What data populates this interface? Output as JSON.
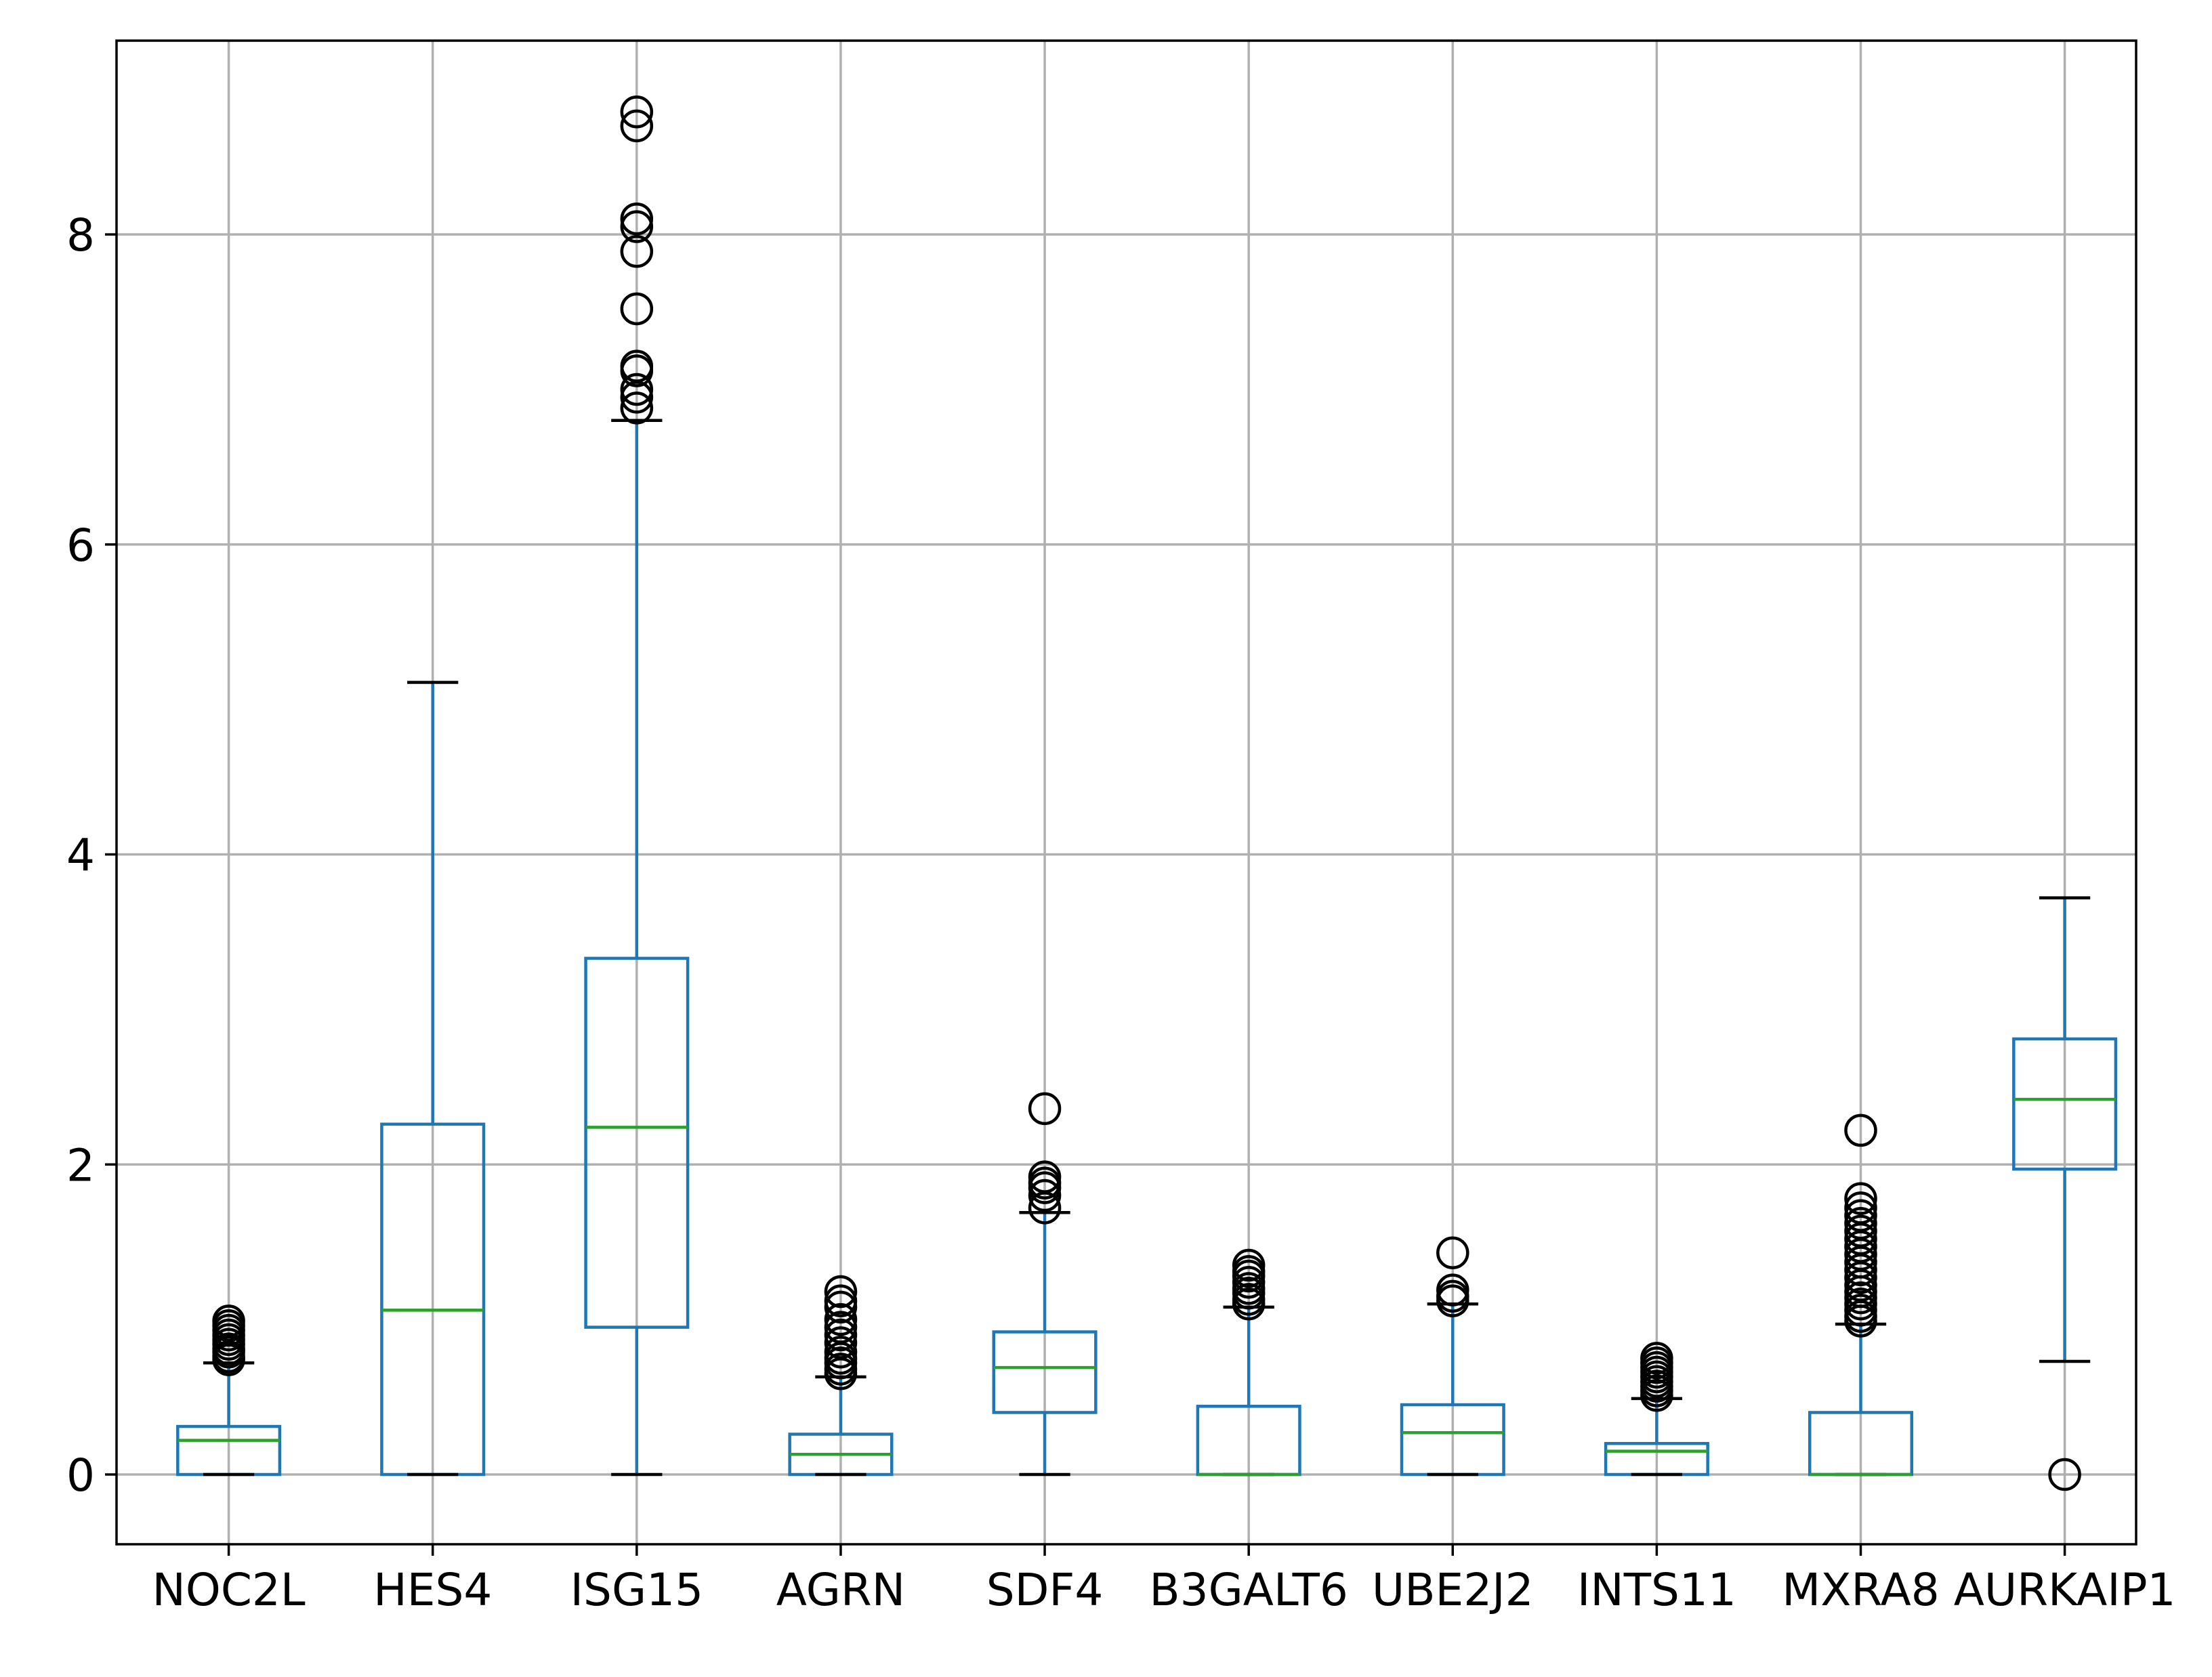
{
  "chart_data": {
    "type": "box",
    "title": "",
    "xlabel": "",
    "ylabel": "",
    "ylim": [
      -0.45,
      9.25
    ],
    "yticks": [
      0,
      2,
      4,
      6,
      8
    ],
    "grid": true,
    "categories": [
      "NOC2L",
      "HES4",
      "ISG15",
      "AGRN",
      "SDF4",
      "B3GALT6",
      "UBE2J2",
      "INTS11",
      "MXRA8",
      "AURKAIP1"
    ],
    "boxes": [
      {
        "category": "NOC2L",
        "whisker_low": 0,
        "q1": 0,
        "median": 0.22,
        "q3": 0.31,
        "whisker_high": 0.72,
        "outliers": [
          0.74,
          0.76,
          0.79,
          0.81,
          0.84,
          0.87,
          0.9,
          0.93,
          0.96,
          0.99
        ]
      },
      {
        "category": "HES4",
        "whisker_low": 0,
        "q1": 0,
        "median": 1.06,
        "q3": 2.26,
        "whisker_high": 5.11,
        "outliers": []
      },
      {
        "category": "ISG15",
        "whisker_low": 0,
        "q1": 0.95,
        "median": 2.24,
        "q3": 3.33,
        "whisker_high": 6.8,
        "outliers": [
          6.88,
          6.95,
          7.0,
          7.12,
          7.15,
          7.52,
          7.89,
          8.05,
          8.1,
          8.7,
          8.79
        ]
      },
      {
        "category": "AGRN",
        "whisker_low": 0,
        "q1": 0,
        "median": 0.13,
        "q3": 0.26,
        "whisker_high": 0.63,
        "outliers": [
          0.65,
          0.68,
          0.72,
          0.75,
          0.79,
          0.85,
          0.9,
          0.95,
          1.0,
          1.08,
          1.12,
          1.18
        ]
      },
      {
        "category": "SDF4",
        "whisker_low": 0,
        "q1": 0.4,
        "median": 0.69,
        "q3": 0.92,
        "whisker_high": 1.69,
        "outliers": [
          1.72,
          1.8,
          1.85,
          1.88,
          1.92,
          2.36
        ]
      },
      {
        "category": "B3GALT6",
        "whisker_low": 0,
        "q1": 0,
        "median": 0,
        "q3": 0.44,
        "whisker_high": 1.08,
        "outliers": [
          1.1,
          1.13,
          1.17,
          1.2,
          1.24,
          1.28,
          1.31,
          1.35
        ]
      },
      {
        "category": "UBE2J2",
        "whisker_low": 0,
        "q1": 0,
        "median": 0.27,
        "q3": 0.45,
        "whisker_high": 1.1,
        "outliers": [
          1.12,
          1.15,
          1.19,
          1.43
        ]
      },
      {
        "category": "INTS11",
        "whisker_low": 0,
        "q1": 0,
        "median": 0.15,
        "q3": 0.2,
        "whisker_high": 0.49,
        "outliers": [
          0.51,
          0.54,
          0.57,
          0.6,
          0.63,
          0.66,
          0.69,
          0.72,
          0.75
        ]
      },
      {
        "category": "MXRA8",
        "whisker_low": 0,
        "q1": 0,
        "median": 0,
        "q3": 0.4,
        "whisker_high": 0.97,
        "outliers": [
          0.99,
          1.02,
          1.06,
          1.1,
          1.14,
          1.18,
          1.22,
          1.27,
          1.32,
          1.37,
          1.42,
          1.47,
          1.52,
          1.57,
          1.62,
          1.67,
          1.72,
          1.78,
          2.22
        ]
      },
      {
        "category": "AURKAIP1",
        "whisker_low": 0.73,
        "q1": 1.97,
        "median": 2.42,
        "q3": 2.81,
        "whisker_high": 3.72,
        "outliers": [
          0
        ]
      }
    ],
    "colors": {
      "box": "#1f77b4",
      "median": "#2ca02c",
      "whisker_cap": "#000000",
      "outlier": "#000000",
      "grid": "#b0b0b0",
      "frame": "#000000"
    }
  }
}
